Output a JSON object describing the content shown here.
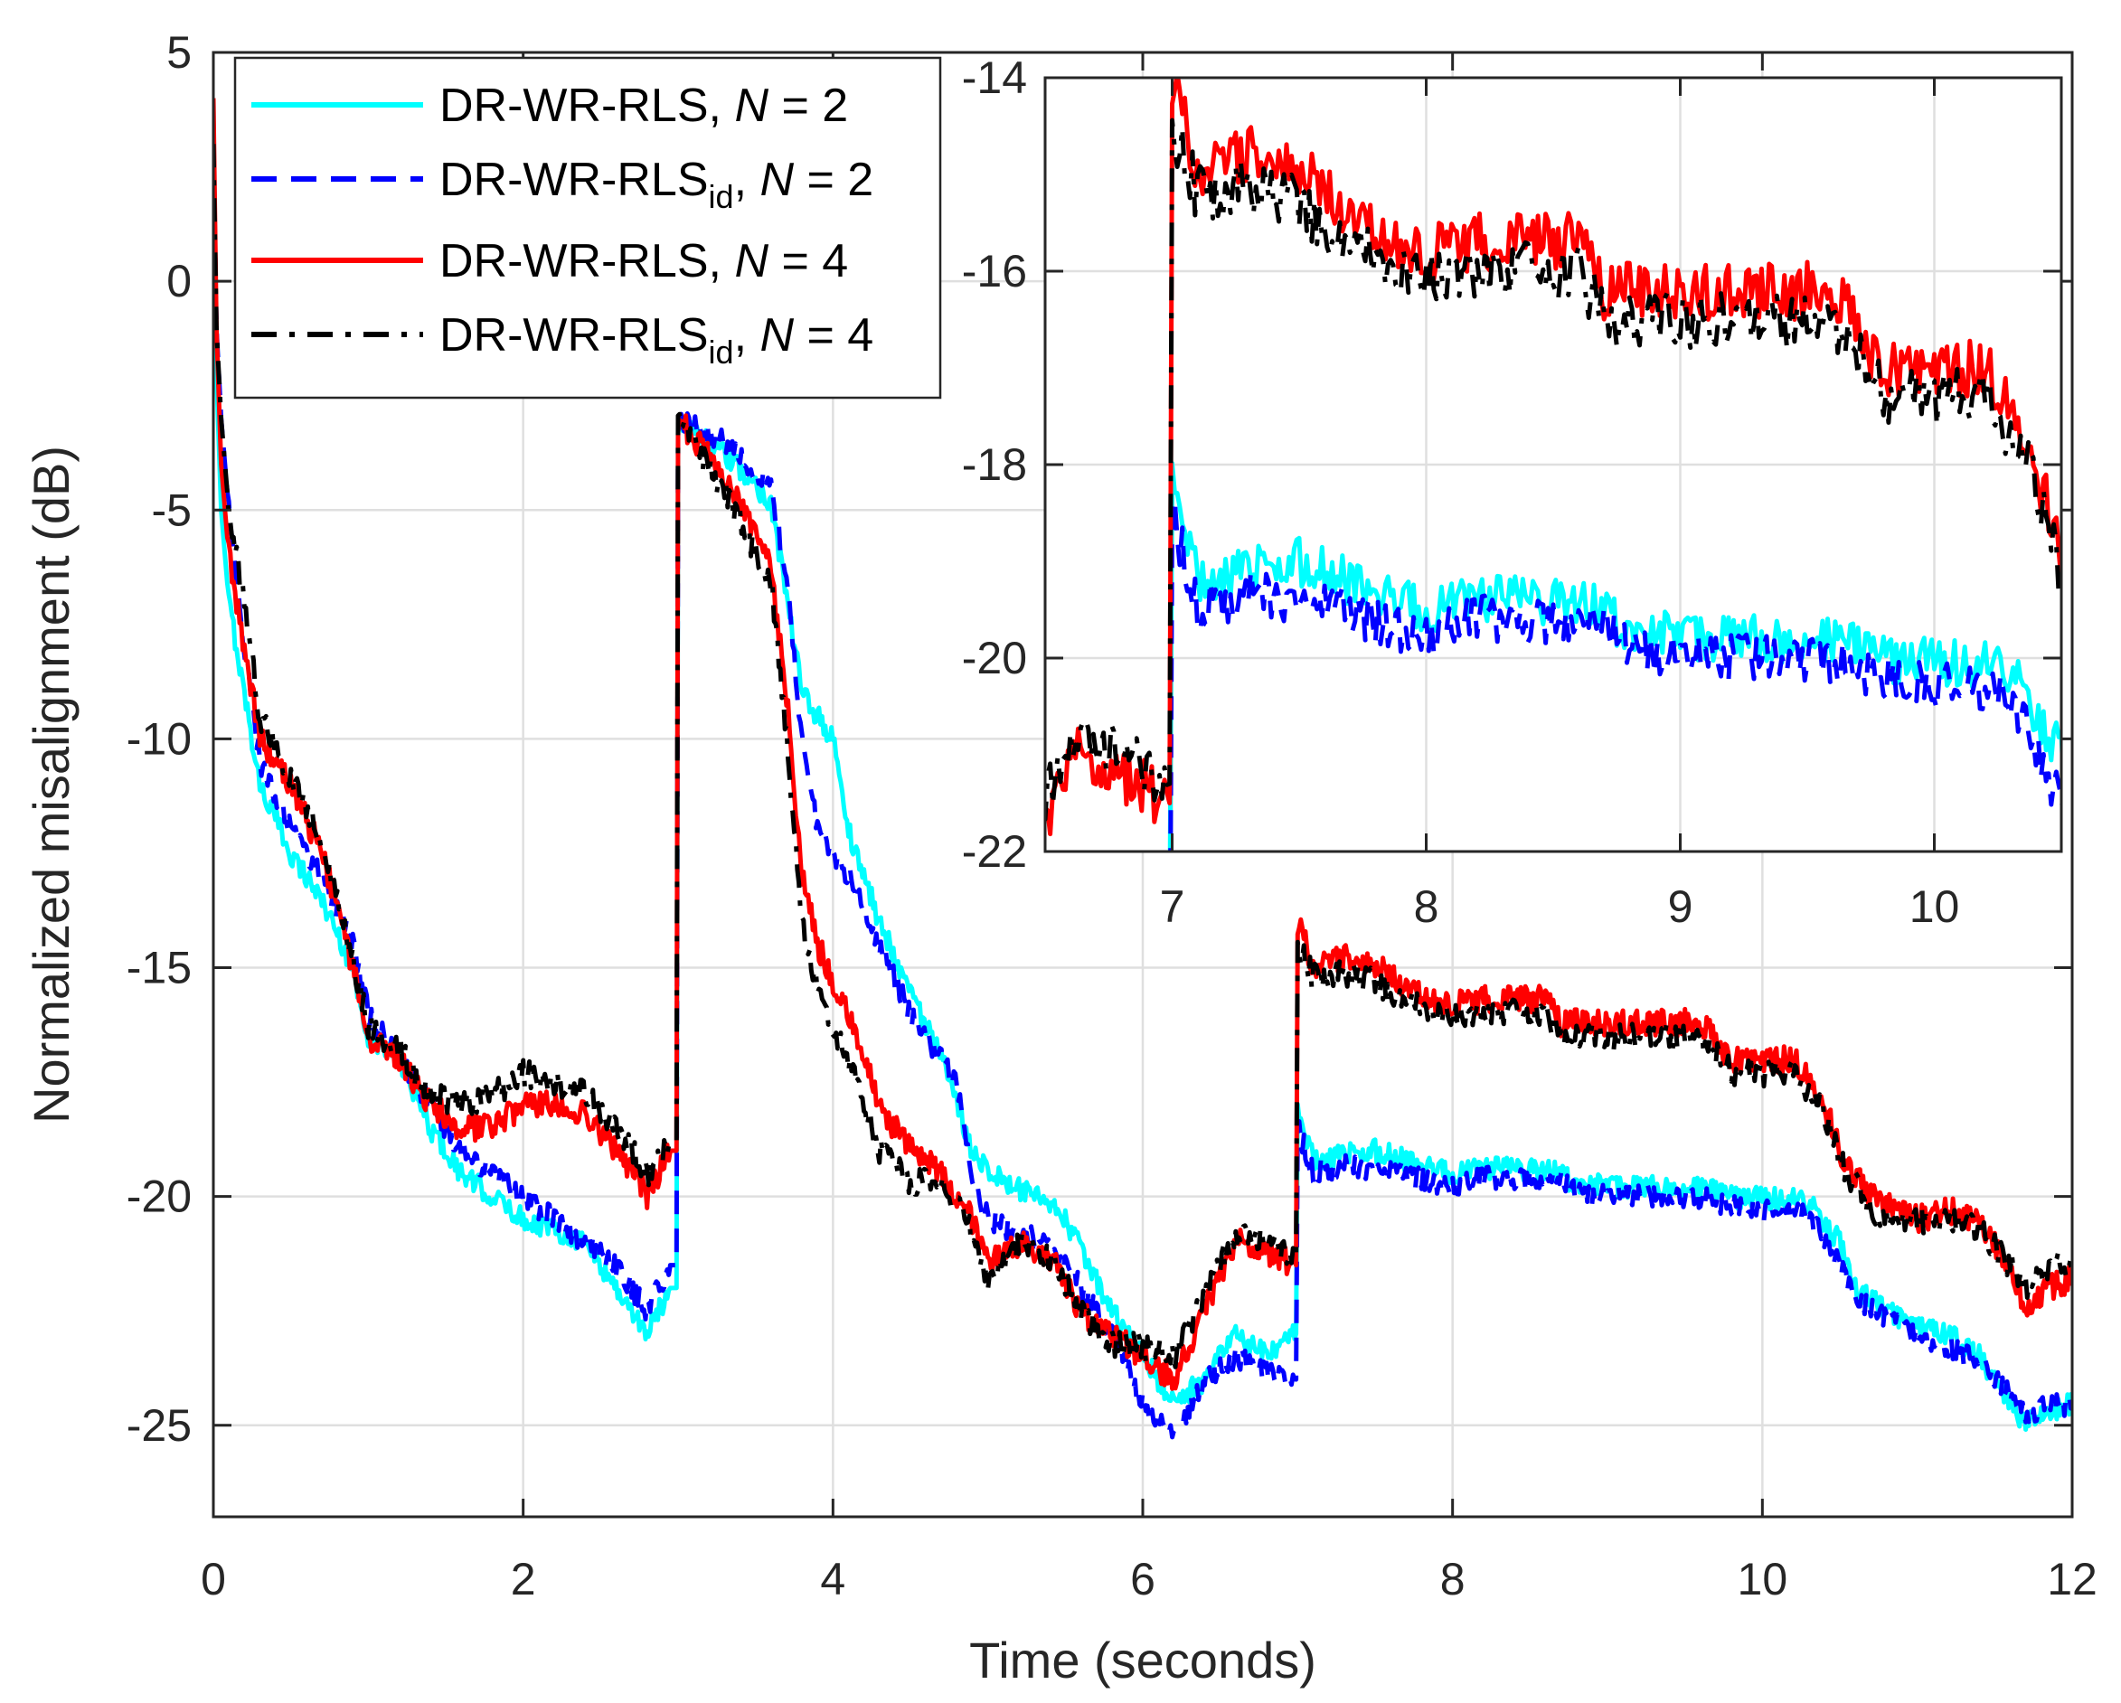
{
  "chart_data": {
    "type": "line",
    "xlabel": "Time (seconds)",
    "ylabel": "Normalized misalignment (dB)",
    "xlim": [
      0,
      12
    ],
    "ylim": [
      -27,
      5
    ],
    "xticks": [
      0,
      2,
      4,
      6,
      8,
      10,
      12
    ],
    "yticks": [
      5,
      0,
      -5,
      -10,
      -15,
      -20,
      -25
    ],
    "grid": true,
    "legend_position": "top-left",
    "legend": [
      {
        "base": "DR-WR-RLS",
        "sub": "",
        "sep": ", ",
        "var": "N",
        "rest": " = 2"
      },
      {
        "base": "DR-WR-RLS",
        "sub": "id",
        "sep": ", ",
        "var": "N",
        "rest": " = 2"
      },
      {
        "base": "DR-WR-RLS",
        "sub": "",
        "sep": ", ",
        "var": "N",
        "rest": " = 4"
      },
      {
        "base": "DR-WR-RLS",
        "sub": "id",
        "sep": ", ",
        "var": "N",
        "rest": " = 4"
      }
    ],
    "series": [
      {
        "name": "DR-WR-RLS, N = 2",
        "color": "#00ffff",
        "style": "solid",
        "noise": 0.25,
        "points": [
          [
            0,
            4
          ],
          [
            0.02,
            -2
          ],
          [
            0.05,
            -5
          ],
          [
            0.1,
            -7
          ],
          [
            0.2,
            -9
          ],
          [
            0.3,
            -11
          ],
          [
            0.5,
            -12.5
          ],
          [
            0.7,
            -13.5
          ],
          [
            0.9,
            -15
          ],
          [
            1.0,
            -16.5
          ],
          [
            1.2,
            -17
          ],
          [
            1.4,
            -18.5
          ],
          [
            1.6,
            -19.5
          ],
          [
            1.8,
            -20
          ],
          [
            2.0,
            -20.5
          ],
          [
            2.2,
            -20.7
          ],
          [
            2.4,
            -21
          ],
          [
            2.6,
            -22
          ],
          [
            2.8,
            -23
          ],
          [
            2.95,
            -22
          ],
          [
            2.99,
            -22
          ],
          [
            3.0,
            -3
          ],
          [
            3.3,
            -3.8
          ],
          [
            3.6,
            -4.8
          ],
          [
            3.8,
            -9
          ],
          [
            4.0,
            -10
          ],
          [
            4.1,
            -12
          ],
          [
            4.3,
            -14
          ],
          [
            4.5,
            -15.5
          ],
          [
            4.7,
            -17
          ],
          [
            4.9,
            -19
          ],
          [
            5.1,
            -19.7
          ],
          [
            5.3,
            -20
          ],
          [
            5.5,
            -20.5
          ],
          [
            5.8,
            -22.5
          ],
          [
            6.0,
            -23.5
          ],
          [
            6.2,
            -24.5
          ],
          [
            6.4,
            -24
          ],
          [
            6.6,
            -23
          ],
          [
            6.8,
            -23.5
          ],
          [
            6.99,
            -23
          ],
          [
            7.0,
            -18
          ],
          [
            7.1,
            -19.2
          ],
          [
            7.3,
            -19.1
          ],
          [
            7.5,
            -19
          ],
          [
            7.8,
            -19.3
          ],
          [
            8.0,
            -19.5
          ],
          [
            8.2,
            -19.4
          ],
          [
            8.6,
            -19.4
          ],
          [
            8.8,
            -19.7
          ],
          [
            9.0,
            -19.8
          ],
          [
            9.6,
            -19.8
          ],
          [
            9.8,
            -20
          ],
          [
            10.3,
            -20.1
          ],
          [
            10.5,
            -21
          ],
          [
            10.6,
            -22
          ],
          [
            10.8,
            -22.5
          ],
          [
            11.0,
            -22.8
          ],
          [
            11.2,
            -23
          ],
          [
            11.4,
            -23.5
          ],
          [
            11.6,
            -24.5
          ],
          [
            11.7,
            -25
          ],
          [
            11.85,
            -24.7
          ],
          [
            12.0,
            -24.5
          ]
        ]
      },
      {
        "name": "DR-WR-RLSid, N = 2",
        "color": "#0000ff",
        "style": "dash",
        "noise": 0.25,
        "points": [
          [
            0,
            3
          ],
          [
            0.02,
            -1
          ],
          [
            0.05,
            -3
          ],
          [
            0.1,
            -5
          ],
          [
            0.2,
            -8
          ],
          [
            0.3,
            -10.5
          ],
          [
            0.5,
            -12
          ],
          [
            0.7,
            -13
          ],
          [
            0.9,
            -14.5
          ],
          [
            1.0,
            -16
          ],
          [
            1.2,
            -17
          ],
          [
            1.4,
            -18
          ],
          [
            1.6,
            -19
          ],
          [
            1.8,
            -19.5
          ],
          [
            2.0,
            -20
          ],
          [
            2.2,
            -20.5
          ],
          [
            2.4,
            -21
          ],
          [
            2.6,
            -21.5
          ],
          [
            2.8,
            -22.5
          ],
          [
            2.95,
            -21.5
          ],
          [
            2.99,
            -21.5
          ],
          [
            3.0,
            -3
          ],
          [
            3.3,
            -3.5
          ],
          [
            3.6,
            -4.5
          ],
          [
            3.7,
            -6.5
          ],
          [
            3.8,
            -10
          ],
          [
            3.9,
            -12
          ],
          [
            4.1,
            -13
          ],
          [
            4.3,
            -14.5
          ],
          [
            4.5,
            -16
          ],
          [
            4.7,
            -17
          ],
          [
            4.8,
            -17.5
          ],
          [
            4.9,
            -19.5
          ],
          [
            5.0,
            -20.5
          ],
          [
            5.2,
            -20.8
          ],
          [
            5.4,
            -21
          ],
          [
            5.6,
            -22
          ],
          [
            5.8,
            -23
          ],
          [
            6.0,
            -24.5
          ],
          [
            6.2,
            -25.2
          ],
          [
            6.4,
            -24
          ],
          [
            6.6,
            -23.5
          ],
          [
            6.8,
            -23.8
          ],
          [
            6.99,
            -24
          ],
          [
            7.0,
            -18.5
          ],
          [
            7.1,
            -19.5
          ],
          [
            7.3,
            -19.3
          ],
          [
            7.5,
            -19.4
          ],
          [
            7.8,
            -19.6
          ],
          [
            8.0,
            -19.8
          ],
          [
            8.2,
            -19.6
          ],
          [
            8.7,
            -19.6
          ],
          [
            8.8,
            -19.9
          ],
          [
            9.0,
            -20
          ],
          [
            9.6,
            -20
          ],
          [
            9.8,
            -20.2
          ],
          [
            10.3,
            -20.4
          ],
          [
            10.5,
            -21.5
          ],
          [
            10.6,
            -22.3
          ],
          [
            10.8,
            -22.6
          ],
          [
            11.0,
            -23
          ],
          [
            11.2,
            -23.3
          ],
          [
            11.4,
            -23.6
          ],
          [
            11.6,
            -24.3
          ],
          [
            11.7,
            -24.8
          ],
          [
            11.85,
            -24.5
          ],
          [
            12.0,
            -24.6
          ]
        ]
      },
      {
        "name": "DR-WR-RLS, N = 4",
        "color": "#ff0000",
        "style": "solid",
        "noise": 0.3,
        "points": [
          [
            0,
            4
          ],
          [
            0.02,
            -1
          ],
          [
            0.05,
            -4
          ],
          [
            0.1,
            -6
          ],
          [
            0.2,
            -8
          ],
          [
            0.3,
            -10
          ],
          [
            0.5,
            -11
          ],
          [
            0.7,
            -12.5
          ],
          [
            0.9,
            -15
          ],
          [
            1.0,
            -16.5
          ],
          [
            1.2,
            -17
          ],
          [
            1.4,
            -18
          ],
          [
            1.6,
            -18.5
          ],
          [
            1.8,
            -18.5
          ],
          [
            2.0,
            -18
          ],
          [
            2.2,
            -18
          ],
          [
            2.4,
            -18.2
          ],
          [
            2.6,
            -19
          ],
          [
            2.8,
            -20
          ],
          [
            2.95,
            -19
          ],
          [
            2.99,
            -19
          ],
          [
            3.0,
            -3
          ],
          [
            3.3,
            -4.3
          ],
          [
            3.6,
            -6.2
          ],
          [
            3.7,
            -9
          ],
          [
            3.8,
            -13
          ],
          [
            3.9,
            -14.5
          ],
          [
            4.1,
            -16
          ],
          [
            4.3,
            -18
          ],
          [
            4.5,
            -19
          ],
          [
            4.7,
            -19.5
          ],
          [
            4.9,
            -20.5
          ],
          [
            5.0,
            -21.5
          ],
          [
            5.2,
            -21
          ],
          [
            5.4,
            -21.3
          ],
          [
            5.6,
            -22.5
          ],
          [
            5.8,
            -23
          ],
          [
            6.0,
            -23.5
          ],
          [
            6.2,
            -24
          ],
          [
            6.4,
            -22.5
          ],
          [
            6.6,
            -21
          ],
          [
            6.8,
            -21.2
          ],
          [
            6.99,
            -21.5
          ],
          [
            7.0,
            -14
          ],
          [
            7.1,
            -15
          ],
          [
            7.3,
            -14.8
          ],
          [
            7.5,
            -14.9
          ],
          [
            7.8,
            -15.6
          ],
          [
            8.0,
            -15.8
          ],
          [
            8.2,
            -15.7
          ],
          [
            8.6,
            -15.7
          ],
          [
            8.7,
            -16.2
          ],
          [
            9.0,
            -16.2
          ],
          [
            9.6,
            -16.2
          ],
          [
            9.8,
            -17
          ],
          [
            10.2,
            -17
          ],
          [
            10.4,
            -18
          ],
          [
            10.5,
            -19
          ],
          [
            10.7,
            -20
          ],
          [
            11.0,
            -20.5
          ],
          [
            11.2,
            -20.3
          ],
          [
            11.4,
            -20.5
          ],
          [
            11.6,
            -21.5
          ],
          [
            11.7,
            -22.5
          ],
          [
            11.85,
            -22
          ],
          [
            12.0,
            -21.8
          ]
        ]
      },
      {
        "name": "DR-WR-RLSid, N = 4",
        "color": "#000000",
        "style": "dashdot",
        "noise": 0.3,
        "points": [
          [
            0,
            3
          ],
          [
            0.02,
            -1
          ],
          [
            0.05,
            -3
          ],
          [
            0.1,
            -5
          ],
          [
            0.2,
            -7
          ],
          [
            0.3,
            -9.5
          ],
          [
            0.5,
            -10.8
          ],
          [
            0.7,
            -12.3
          ],
          [
            0.9,
            -14.8
          ],
          [
            1.0,
            -16.3
          ],
          [
            1.2,
            -16.8
          ],
          [
            1.4,
            -17.8
          ],
          [
            1.6,
            -18
          ],
          [
            1.8,
            -17.8
          ],
          [
            2.0,
            -17.3
          ],
          [
            2.2,
            -17.5
          ],
          [
            2.4,
            -17.7
          ],
          [
            2.6,
            -18.5
          ],
          [
            2.8,
            -19.5
          ],
          [
            2.95,
            -18.8
          ],
          [
            2.99,
            -18.8
          ],
          [
            3.0,
            -3
          ],
          [
            3.3,
            -4.6
          ],
          [
            3.6,
            -6.6
          ],
          [
            3.7,
            -10
          ],
          [
            3.8,
            -14
          ],
          [
            3.9,
            -15.5
          ],
          [
            4.1,
            -17
          ],
          [
            4.3,
            -19
          ],
          [
            4.5,
            -19.7
          ],
          [
            4.7,
            -19.6
          ],
          [
            4.9,
            -20.8
          ],
          [
            5.0,
            -21.8
          ],
          [
            5.2,
            -21
          ],
          [
            5.4,
            -21.3
          ],
          [
            5.6,
            -22.5
          ],
          [
            5.8,
            -23.2
          ],
          [
            6.0,
            -23.3
          ],
          [
            6.2,
            -23.5
          ],
          [
            6.4,
            -22.2
          ],
          [
            6.6,
            -20.8
          ],
          [
            6.8,
            -21
          ],
          [
            6.99,
            -21.3
          ],
          [
            7.0,
            -14.5
          ],
          [
            7.1,
            -15.2
          ],
          [
            7.3,
            -15.1
          ],
          [
            7.5,
            -15.3
          ],
          [
            7.8,
            -15.9
          ],
          [
            8.0,
            -16.1
          ],
          [
            8.2,
            -16
          ],
          [
            8.6,
            -16
          ],
          [
            8.7,
            -16.5
          ],
          [
            9.0,
            -16.5
          ],
          [
            9.6,
            -16.5
          ],
          [
            9.8,
            -17.3
          ],
          [
            10.2,
            -17.3
          ],
          [
            10.4,
            -18.2
          ],
          [
            10.5,
            -19.2
          ],
          [
            10.7,
            -20.3
          ],
          [
            11.0,
            -20.5
          ],
          [
            11.2,
            -20.5
          ],
          [
            11.4,
            -20.7
          ],
          [
            11.6,
            -21.5
          ],
          [
            11.7,
            -22
          ],
          [
            11.85,
            -21.5
          ],
          [
            12.0,
            -21.5
          ]
        ]
      }
    ],
    "inset": {
      "xlim": [
        6.5,
        10.5
      ],
      "ylim": [
        -22,
        -14
      ],
      "xticks": [
        7,
        8,
        9,
        10
      ],
      "yticks": [
        -14,
        -16,
        -18,
        -20,
        -22
      ],
      "grid": true
    }
  }
}
